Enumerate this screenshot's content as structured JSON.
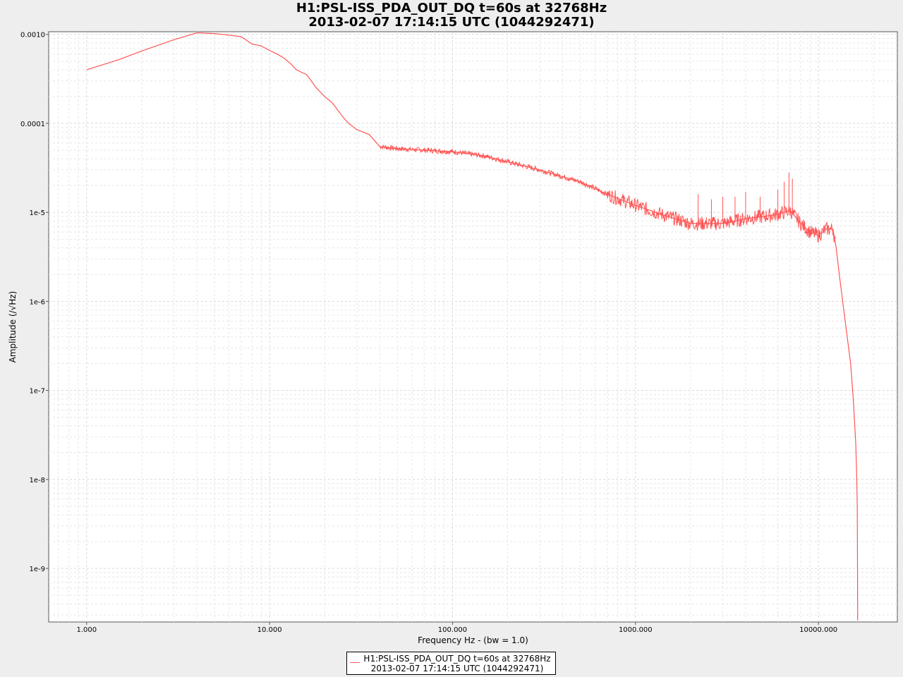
{
  "chart_data": {
    "type": "line",
    "title": [
      "H1:PSL-ISS_PDA_OUT_DQ t=60s at 32768Hz",
      "2013-02-07 17:14:15 UTC (1044292471)"
    ],
    "xlabel": "Frequency Hz - (bw = 1.0)",
    "ylabel": "Amplitude  (/√Hz)",
    "xscale": "log",
    "yscale": "log",
    "xlim": [
      0.62,
      27000
    ],
    "ylim": [
      2.5e-10,
      0.00107
    ],
    "xticks": [
      {
        "value": 1,
        "label": "1.000"
      },
      {
        "value": 10,
        "label": "10.000"
      },
      {
        "value": 100,
        "label": "100.000"
      },
      {
        "value": 1000,
        "label": "1000.000"
      },
      {
        "value": 10000,
        "label": "10000.000"
      }
    ],
    "yticks": [
      {
        "value": 0.001,
        "label": "0.0010"
      },
      {
        "value": 0.0001,
        "label": "0.0001"
      },
      {
        "value": 1e-05,
        "label": "1e-5"
      },
      {
        "value": 1e-06,
        "label": "1e-6"
      },
      {
        "value": 1e-07,
        "label": "1e-7"
      },
      {
        "value": 1e-08,
        "label": "1e-8"
      },
      {
        "value": 1e-09,
        "label": "1e-9"
      }
    ],
    "grid": true,
    "legend_position": "bottom-center",
    "series": [
      {
        "name": "H1:PSL-ISS_PDA_OUT_DQ t=60s at 32768Hz\n2013-02-07 17:14:15 UTC (1044292471)",
        "color": "#ff5555",
        "points": [
          [
            1.0,
            0.0004
          ],
          [
            1.5,
            0.00052
          ],
          [
            2.0,
            0.00065
          ],
          [
            3.0,
            0.00087
          ],
          [
            4.0,
            0.00104
          ],
          [
            5.0,
            0.00102
          ],
          [
            6.0,
            0.00098
          ],
          [
            7.0,
            0.00094
          ],
          [
            8.0,
            0.00078
          ],
          [
            9.0,
            0.00074
          ],
          [
            10.0,
            0.00066
          ],
          [
            11.0,
            0.0006
          ],
          [
            12.0,
            0.00054
          ],
          [
            13.0,
            0.00047
          ],
          [
            14.0,
            0.0004
          ],
          [
            16.0,
            0.00035
          ],
          [
            18.0,
            0.00025
          ],
          [
            20.0,
            0.0002
          ],
          [
            22.0,
            0.00017
          ],
          [
            25.0,
            0.00012
          ],
          [
            27.0,
            0.0001
          ],
          [
            30.0,
            8.5e-05
          ],
          [
            35.0,
            7.5e-05
          ],
          [
            40.0,
            5.5e-05
          ],
          [
            50.0,
            5.2e-05
          ],
          [
            70.0,
            5e-05
          ],
          [
            100.0,
            4.8e-05
          ],
          [
            150.0,
            4.3e-05
          ],
          [
            200.0,
            3.7e-05
          ],
          [
            300.0,
            3e-05
          ],
          [
            500.0,
            2.2e-05
          ],
          [
            700.0,
            1.6e-05
          ],
          [
            1000.0,
            1.2e-05
          ],
          [
            1500.0,
            9e-06
          ],
          [
            2000.0,
            7.5e-06
          ],
          [
            3000.0,
            7.5e-06
          ],
          [
            4000.0,
            8.5e-06
          ],
          [
            5000.0,
            9e-06
          ],
          [
            6000.0,
            9.5e-06
          ],
          [
            7000.0,
            1.05e-05
          ],
          [
            8000.0,
            7.5e-06
          ],
          [
            9000.0,
            6e-06
          ],
          [
            10000.0,
            5.5e-06
          ],
          [
            11000.0,
            6.5e-06
          ],
          [
            12000.0,
            6.5e-06
          ],
          [
            12500.0,
            4e-06
          ],
          [
            13000.0,
            2e-06
          ],
          [
            14000.0,
            6e-07
          ],
          [
            15000.0,
            2e-07
          ],
          [
            15500.0,
            8e-08
          ],
          [
            16000.0,
            2.5e-08
          ],
          [
            16200.0,
            1e-08
          ],
          [
            16300.0,
            5e-09
          ],
          [
            16350.0,
            1e-09
          ],
          [
            16384.0,
            2.6e-10
          ]
        ],
        "peaks": [
          [
            2200.0,
            1.6e-05
          ],
          [
            2600.0,
            1.4e-05
          ],
          [
            3000.0,
            1.5e-05
          ],
          [
            3500.0,
            1.5e-05
          ],
          [
            4000.0,
            1.7e-05
          ],
          [
            4800.0,
            1.5e-05
          ],
          [
            6000.0,
            1.8e-05
          ],
          [
            6500.0,
            2.2e-05
          ],
          [
            6900.0,
            2.8e-05
          ],
          [
            7200.0,
            2.4e-05
          ]
        ]
      }
    ]
  }
}
